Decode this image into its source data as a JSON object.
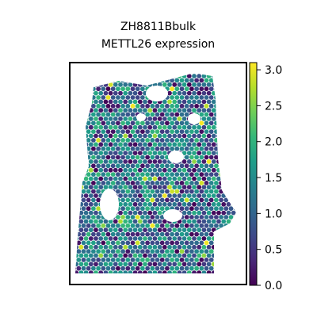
{
  "chart_data": {
    "type": "heatmap",
    "title": "ZH8811Bbulk",
    "subtitle": "METTL26 expression",
    "xlabel": "",
    "ylabel": "",
    "grid": false,
    "colormap": "viridis",
    "colorbar": {
      "vmin": 0.0,
      "vmax": 3.1,
      "ticks": [
        0.0,
        0.5,
        1.0,
        1.5,
        2.0,
        2.5,
        3.0
      ],
      "tick_labels": [
        "0.0",
        "0.5",
        "1.0",
        "1.5",
        "2.0",
        "2.5",
        "3.0"
      ],
      "location": "right"
    },
    "summary": {
      "median_value": 1.3,
      "sparse_high_values": [
        2.5,
        3.0
      ]
    }
  },
  "colors": {
    "viridis": [
      "#440154",
      "#482878",
      "#3e4989",
      "#31688e",
      "#26828e",
      "#1f9e89",
      "#35b779",
      "#6ece58",
      "#b5de2b",
      "#fde725"
    ],
    "frame": "#000000",
    "background": "#ffffff"
  }
}
